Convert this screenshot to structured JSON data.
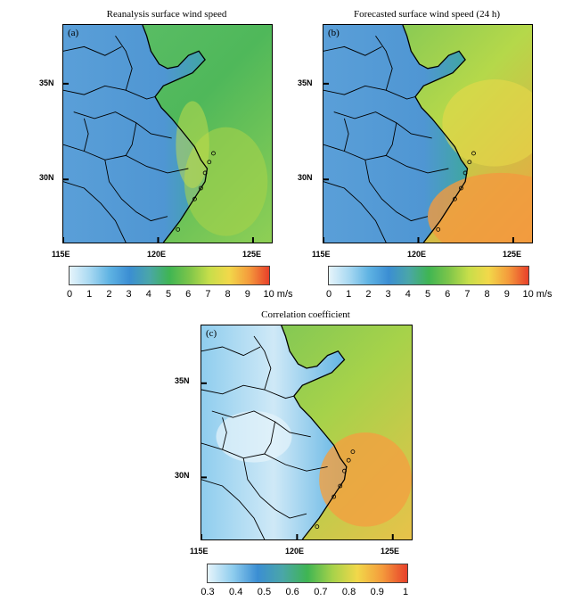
{
  "panels": [
    {
      "id": "a",
      "title": "Reanalysis surface wind speed",
      "letter": "(a)",
      "lat_labels": [
        "35N",
        "30N"
      ],
      "lon_labels": [
        "115E",
        "120E",
        "125E"
      ],
      "colorbar": {
        "labels": [
          "0",
          "1",
          "2",
          "3",
          "4",
          "5",
          "6",
          "7",
          "8",
          "9",
          "10 m/s"
        ],
        "unit": "m/s",
        "range": [
          0,
          10
        ],
        "colors": [
          "#e6f4fb",
          "#a9d9f2",
          "#5fb3e3",
          "#3b8ed3",
          "#4aa6a8",
          "#3fb553",
          "#7cc54a",
          "#c7de4a",
          "#f2d84a",
          "#f49b3c",
          "#e8402a"
        ]
      },
      "field_note": "blue (2-4 m/s) over land, green (5-7 m/s) over sea",
      "field": {
        "land_value": 3,
        "coast_value": 4.5,
        "sea_value": 6
      }
    },
    {
      "id": "b",
      "title": "Forecasted surface wind speed (24 h)",
      "letter": "(b)",
      "lat_labels": [
        "35N",
        "30N"
      ],
      "lon_labels": [
        "115E",
        "120E",
        "125E"
      ],
      "colorbar": {
        "labels": [
          "0",
          "1",
          "2",
          "3",
          "4",
          "5",
          "6",
          "7",
          "8",
          "9",
          "10 m/s"
        ],
        "unit": "m/s",
        "range": [
          0,
          10
        ],
        "colors": [
          "#e6f4fb",
          "#a9d9f2",
          "#5fb3e3",
          "#3b8ed3",
          "#4aa6a8",
          "#3fb553",
          "#7cc54a",
          "#c7de4a",
          "#f2d84a",
          "#f49b3c",
          "#e8402a"
        ]
      },
      "field": {
        "land_value": 3,
        "coast_value": 5,
        "sea_value": 6.5,
        "southeast_max": 8
      }
    },
    {
      "id": "c",
      "title": "Correlation coefficient",
      "letter": "(c)",
      "lat_labels": [
        "35N",
        "30N"
      ],
      "lon_labels": [
        "115E",
        "120E",
        "125E"
      ],
      "colorbar": {
        "labels": [
          "0.3",
          "0.4",
          "0.5",
          "0.6",
          "0.7",
          "0.8",
          "0.9",
          "1"
        ],
        "range": [
          0.3,
          1
        ],
        "colors": [
          "#e6f4fb",
          "#8fcdee",
          "#3b8ed3",
          "#4aa6a8",
          "#3fb553",
          "#a6d24a",
          "#f2d84a",
          "#f49b3c",
          "#e8402a"
        ]
      },
      "field": {
        "land_value": 0.45,
        "sea_value": 0.7,
        "east_sea_max": 0.85
      }
    }
  ],
  "map_extent": {
    "lon_min": 115,
    "lon_max": 126,
    "lat_min": 26.5,
    "lat_max": 38
  }
}
